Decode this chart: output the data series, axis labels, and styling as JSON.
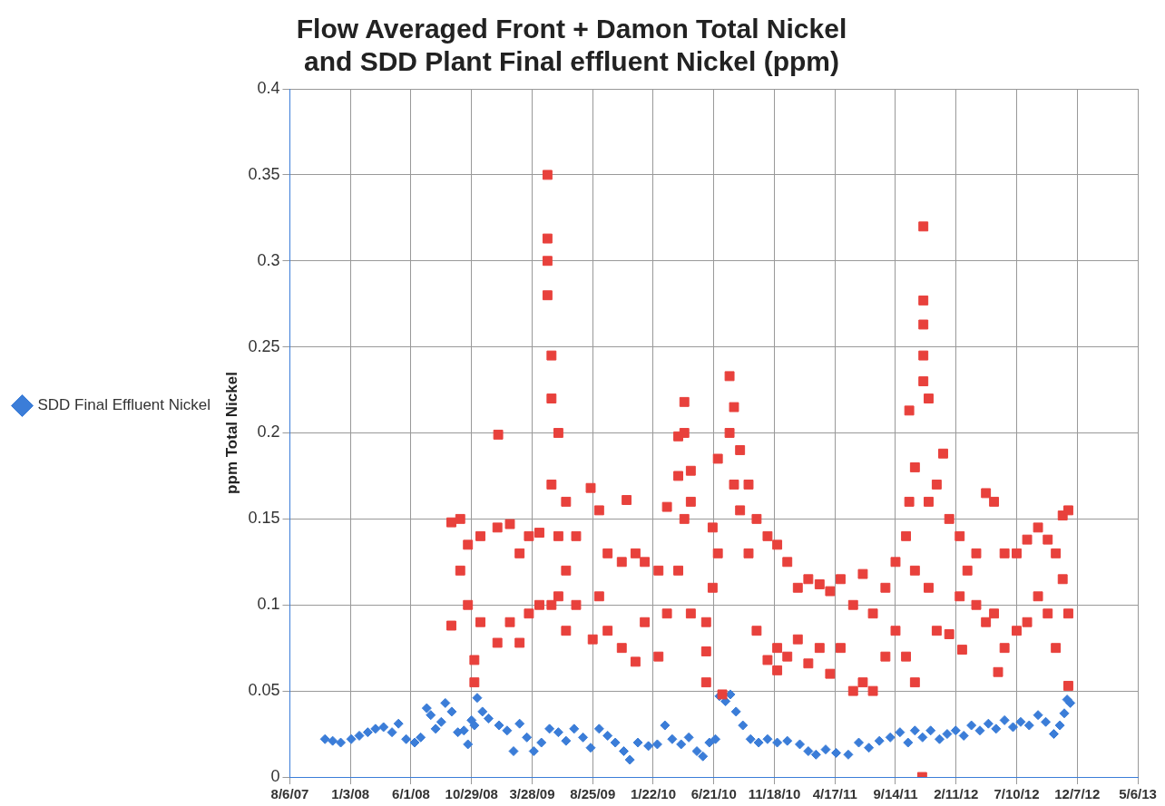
{
  "chart_data": {
    "type": "scatter",
    "title": "Flow Averaged Front + Damon Total Nickel and SDD Plant Final effluent Nickel (ppm)",
    "ylabel": "ppm Total Nickel",
    "xlim": [
      "2007-08-06",
      "2013-05-06"
    ],
    "xticks": [
      {
        "value": "2007-08-06",
        "label": "8/6/07"
      },
      {
        "value": "2008-01-03",
        "label": "1/3/08"
      },
      {
        "value": "2008-06-01",
        "label": "6/1/08"
      },
      {
        "value": "2008-10-29",
        "label": "10/29/08"
      },
      {
        "value": "2009-03-28",
        "label": "3/28/09"
      },
      {
        "value": "2009-08-25",
        "label": "8/25/09"
      },
      {
        "value": "2010-01-22",
        "label": "1/22/10"
      },
      {
        "value": "2010-06-21",
        "label": "6/21/10"
      },
      {
        "value": "2010-11-18",
        "label": "11/18/10"
      },
      {
        "value": "2011-04-17",
        "label": "4/17/11"
      },
      {
        "value": "2011-09-14",
        "label": "9/14/11"
      },
      {
        "value": "2012-02-11",
        "label": "2/11/12"
      },
      {
        "value": "2012-07-10",
        "label": "7/10/12"
      },
      {
        "value": "2012-12-07",
        "label": "12/7/12"
      },
      {
        "value": "2013-05-06",
        "label": "5/6/13"
      }
    ],
    "ylim": [
      0,
      0.4
    ],
    "yticks": [
      0,
      0.05,
      0.1,
      0.15,
      0.2,
      0.25,
      0.3,
      0.35,
      0.4
    ],
    "grid": true,
    "legend": "left",
    "series": [
      {
        "color": "#e8413c",
        "marker": "square",
        "x": [
          "2008-09-09",
          "2008-09-09",
          "2008-10-01",
          "2008-10-01",
          "2008-10-20",
          "2008-10-20",
          "2008-11-05",
          "2008-11-05",
          "2008-11-20",
          "2008-11-20",
          "2009-01-03",
          "2009-01-01",
          "2009-01-01",
          "2009-02-01",
          "2009-02-01",
          "2009-02-25",
          "2009-02-25",
          "2009-03-20",
          "2009-03-20",
          "2009-04-15",
          "2009-04-15",
          "2009-05-05",
          "2009-05-05",
          "2009-05-05",
          "2009-05-05",
          "2009-05-15",
          "2009-05-15",
          "2009-05-15",
          "2009-05-15",
          "2009-06-01",
          "2009-06-01",
          "2009-06-01",
          "2009-06-20",
          "2009-06-20",
          "2009-06-20",
          "2009-07-15",
          "2009-07-15",
          "2009-08-20",
          "2009-08-25",
          "2009-09-10",
          "2009-09-10",
          "2009-10-01",
          "2009-10-01",
          "2009-11-17",
          "2009-11-05",
          "2009-11-05",
          "2009-12-09",
          "2009-12-09",
          "2010-01-01",
          "2010-01-01",
          "2010-02-04",
          "2010-02-04",
          "2010-02-25",
          "2010-02-25",
          "2010-03-25",
          "2010-03-25",
          "2010-03-25",
          "2010-04-09",
          "2010-04-09",
          "2010-04-09",
          "2010-04-25",
          "2010-04-25",
          "2010-04-25",
          "2010-06-02",
          "2010-06-02",
          "2010-06-02",
          "2010-06-18",
          "2010-06-18",
          "2010-07-01",
          "2010-07-01",
          "2010-07-12",
          "2010-07-30",
          "2010-07-30",
          "2010-08-10",
          "2010-08-10",
          "2010-08-25",
          "2010-08-25",
          "2010-09-15",
          "2010-09-15",
          "2010-10-05",
          "2010-10-05",
          "2010-11-01",
          "2010-11-01",
          "2010-11-25",
          "2010-11-25",
          "2010-11-25",
          "2010-12-20",
          "2010-12-20",
          "2011-01-15",
          "2011-01-15",
          "2011-02-10",
          "2011-02-10",
          "2011-03-10",
          "2011-03-10",
          "2011-04-05",
          "2011-04-05",
          "2011-05-01",
          "2011-05-01",
          "2011-06-01",
          "2011-06-01",
          "2011-06-25",
          "2011-06-25",
          "2011-07-20",
          "2011-07-20",
          "2011-08-20",
          "2011-08-20",
          "2011-09-14",
          "2011-09-14",
          "2011-10-10",
          "2011-10-10",
          "2011-10-18",
          "2011-10-18",
          "2011-11-01",
          "2011-11-01",
          "2011-11-01",
          "2011-11-22",
          "2011-11-22",
          "2011-11-22",
          "2011-11-22",
          "2011-11-22",
          "2011-11-19",
          "2011-12-05",
          "2011-12-05",
          "2011-12-05",
          "2011-12-25",
          "2011-12-25",
          "2012-01-10",
          "2012-01-25",
          "2012-01-25",
          "2012-02-20",
          "2012-02-20",
          "2012-03-10",
          "2012-02-26",
          "2012-04-01",
          "2012-04-01",
          "2012-04-25",
          "2012-04-25",
          "2012-05-15",
          "2012-05-15",
          "2012-06-10",
          "2012-06-10",
          "2012-05-25",
          "2012-07-10",
          "2012-07-10",
          "2012-08-05",
          "2012-08-05",
          "2012-09-01",
          "2012-09-01",
          "2012-09-25",
          "2012-09-25",
          "2012-10-15",
          "2012-10-15",
          "2012-11-01",
          "2012-11-01",
          "2012-11-15",
          "2012-11-15",
          "2012-11-15"
        ],
        "values": [
          0.148,
          0.088,
          0.15,
          0.12,
          0.135,
          0.1,
          0.068,
          0.055,
          0.14,
          0.09,
          0.199,
          0.145,
          0.078,
          0.147,
          0.09,
          0.13,
          0.078,
          0.14,
          0.095,
          0.142,
          0.1,
          0.35,
          0.3,
          0.28,
          0.313,
          0.245,
          0.22,
          0.17,
          0.1,
          0.2,
          0.14,
          0.105,
          0.16,
          0.12,
          0.085,
          0.14,
          0.1,
          0.168,
          0.08,
          0.155,
          0.105,
          0.13,
          0.085,
          0.161,
          0.125,
          0.075,
          0.13,
          0.067,
          0.125,
          0.09,
          0.12,
          0.07,
          0.157,
          0.095,
          0.198,
          0.175,
          0.12,
          0.218,
          0.2,
          0.15,
          0.178,
          0.16,
          0.095,
          0.09,
          0.073,
          0.055,
          0.145,
          0.11,
          0.185,
          0.13,
          0.048,
          0.233,
          0.2,
          0.215,
          0.17,
          0.19,
          0.155,
          0.17,
          0.13,
          0.15,
          0.085,
          0.14,
          0.068,
          0.135,
          0.075,
          0.062,
          0.125,
          0.07,
          0.11,
          0.08,
          0.115,
          0.066,
          0.112,
          0.075,
          0.108,
          0.06,
          0.115,
          0.075,
          0.1,
          0.05,
          0.118,
          0.055,
          0.095,
          0.05,
          0.11,
          0.07,
          0.125,
          0.085,
          0.14,
          0.07,
          0.213,
          0.16,
          0.18,
          0.12,
          0.055,
          0.32,
          0.277,
          0.263,
          0.245,
          0.23,
          0.0,
          0.22,
          0.16,
          0.11,
          0.17,
          0.085,
          0.188,
          0.15,
          0.083,
          0.14,
          0.105,
          0.12,
          0.074,
          0.13,
          0.1,
          0.165,
          0.09,
          0.16,
          0.095,
          0.13,
          0.075,
          0.061,
          0.13,
          0.085,
          0.138,
          0.09,
          0.145,
          0.105,
          0.138,
          0.095,
          0.13,
          0.075,
          0.152,
          0.115,
          0.155,
          0.095,
          0.053
        ]
      },
      {
        "name": "SDD Final Effluent Nickel",
        "color": "#3b7dd8",
        "marker": "diamond",
        "x": [
          "2007-11-01",
          "2007-11-20",
          "2007-12-10",
          "2008-01-05",
          "2008-01-25",
          "2008-02-15",
          "2008-03-05",
          "2008-03-25",
          "2008-04-15",
          "2008-05-01",
          "2008-05-20",
          "2008-06-10",
          "2008-06-25",
          "2008-07-10",
          "2008-07-20",
          "2008-08-01",
          "2008-08-15",
          "2008-08-25",
          "2008-09-10",
          "2008-09-25",
          "2008-10-10",
          "2008-10-20",
          "2008-10-29",
          "2008-11-05",
          "2008-11-12",
          "2008-11-25",
          "2008-12-10",
          "2009-01-05",
          "2009-01-25",
          "2009-02-10",
          "2009-02-25",
          "2009-03-15",
          "2009-04-01",
          "2009-04-20",
          "2009-05-10",
          "2009-06-01",
          "2009-06-20",
          "2009-07-10",
          "2009-08-01",
          "2009-08-20",
          "2009-09-10",
          "2009-10-01",
          "2009-10-20",
          "2009-11-10",
          "2009-11-25",
          "2009-12-15",
          "2010-01-10",
          "2010-02-01",
          "2010-02-20",
          "2010-03-10",
          "2010-04-01",
          "2010-04-20",
          "2010-05-10",
          "2010-05-25",
          "2010-06-10",
          "2010-06-25",
          "2010-07-05",
          "2010-07-20",
          "2010-08-01",
          "2010-08-15",
          "2010-09-01",
          "2010-09-20",
          "2010-10-10",
          "2010-11-01",
          "2010-11-25",
          "2010-12-20",
          "2011-01-20",
          "2011-02-10",
          "2011-03-01",
          "2011-03-25",
          "2011-04-20",
          "2011-05-20",
          "2011-06-15",
          "2011-07-10",
          "2011-08-05",
          "2011-09-01",
          "2011-09-25",
          "2011-10-15",
          "2011-11-01",
          "2011-11-20",
          "2011-12-10",
          "2012-01-01",
          "2012-01-20",
          "2012-02-10",
          "2012-03-01",
          "2012-03-20",
          "2012-04-10",
          "2012-05-01",
          "2012-05-20",
          "2012-06-10",
          "2012-07-01",
          "2012-07-20",
          "2012-08-10",
          "2012-09-01",
          "2012-09-20",
          "2012-10-10",
          "2012-10-25",
          "2012-11-05",
          "2012-11-12",
          "2012-11-20"
        ],
        "values": [
          0.022,
          0.021,
          0.02,
          0.022,
          0.024,
          0.026,
          0.028,
          0.029,
          0.026,
          0.031,
          0.022,
          0.02,
          0.023,
          0.04,
          0.036,
          0.028,
          0.032,
          0.043,
          0.038,
          0.026,
          0.027,
          0.019,
          0.033,
          0.03,
          0.046,
          0.038,
          0.034,
          0.03,
          0.027,
          0.015,
          0.031,
          0.023,
          0.015,
          0.02,
          0.028,
          0.026,
          0.021,
          0.028,
          0.023,
          0.017,
          0.028,
          0.024,
          0.02,
          0.015,
          0.01,
          0.02,
          0.018,
          0.019,
          0.03,
          0.022,
          0.019,
          0.023,
          0.015,
          0.012,
          0.02,
          0.022,
          0.047,
          0.044,
          0.048,
          0.038,
          0.03,
          0.022,
          0.02,
          0.022,
          0.02,
          0.021,
          0.019,
          0.015,
          0.013,
          0.016,
          0.014,
          0.013,
          0.02,
          0.017,
          0.021,
          0.023,
          0.026,
          0.02,
          0.027,
          0.023,
          0.027,
          0.022,
          0.025,
          0.027,
          0.024,
          0.03,
          0.027,
          0.031,
          0.028,
          0.033,
          0.029,
          0.032,
          0.03,
          0.036,
          0.032,
          0.025,
          0.03,
          0.037,
          0.045,
          0.043
        ]
      }
    ]
  }
}
